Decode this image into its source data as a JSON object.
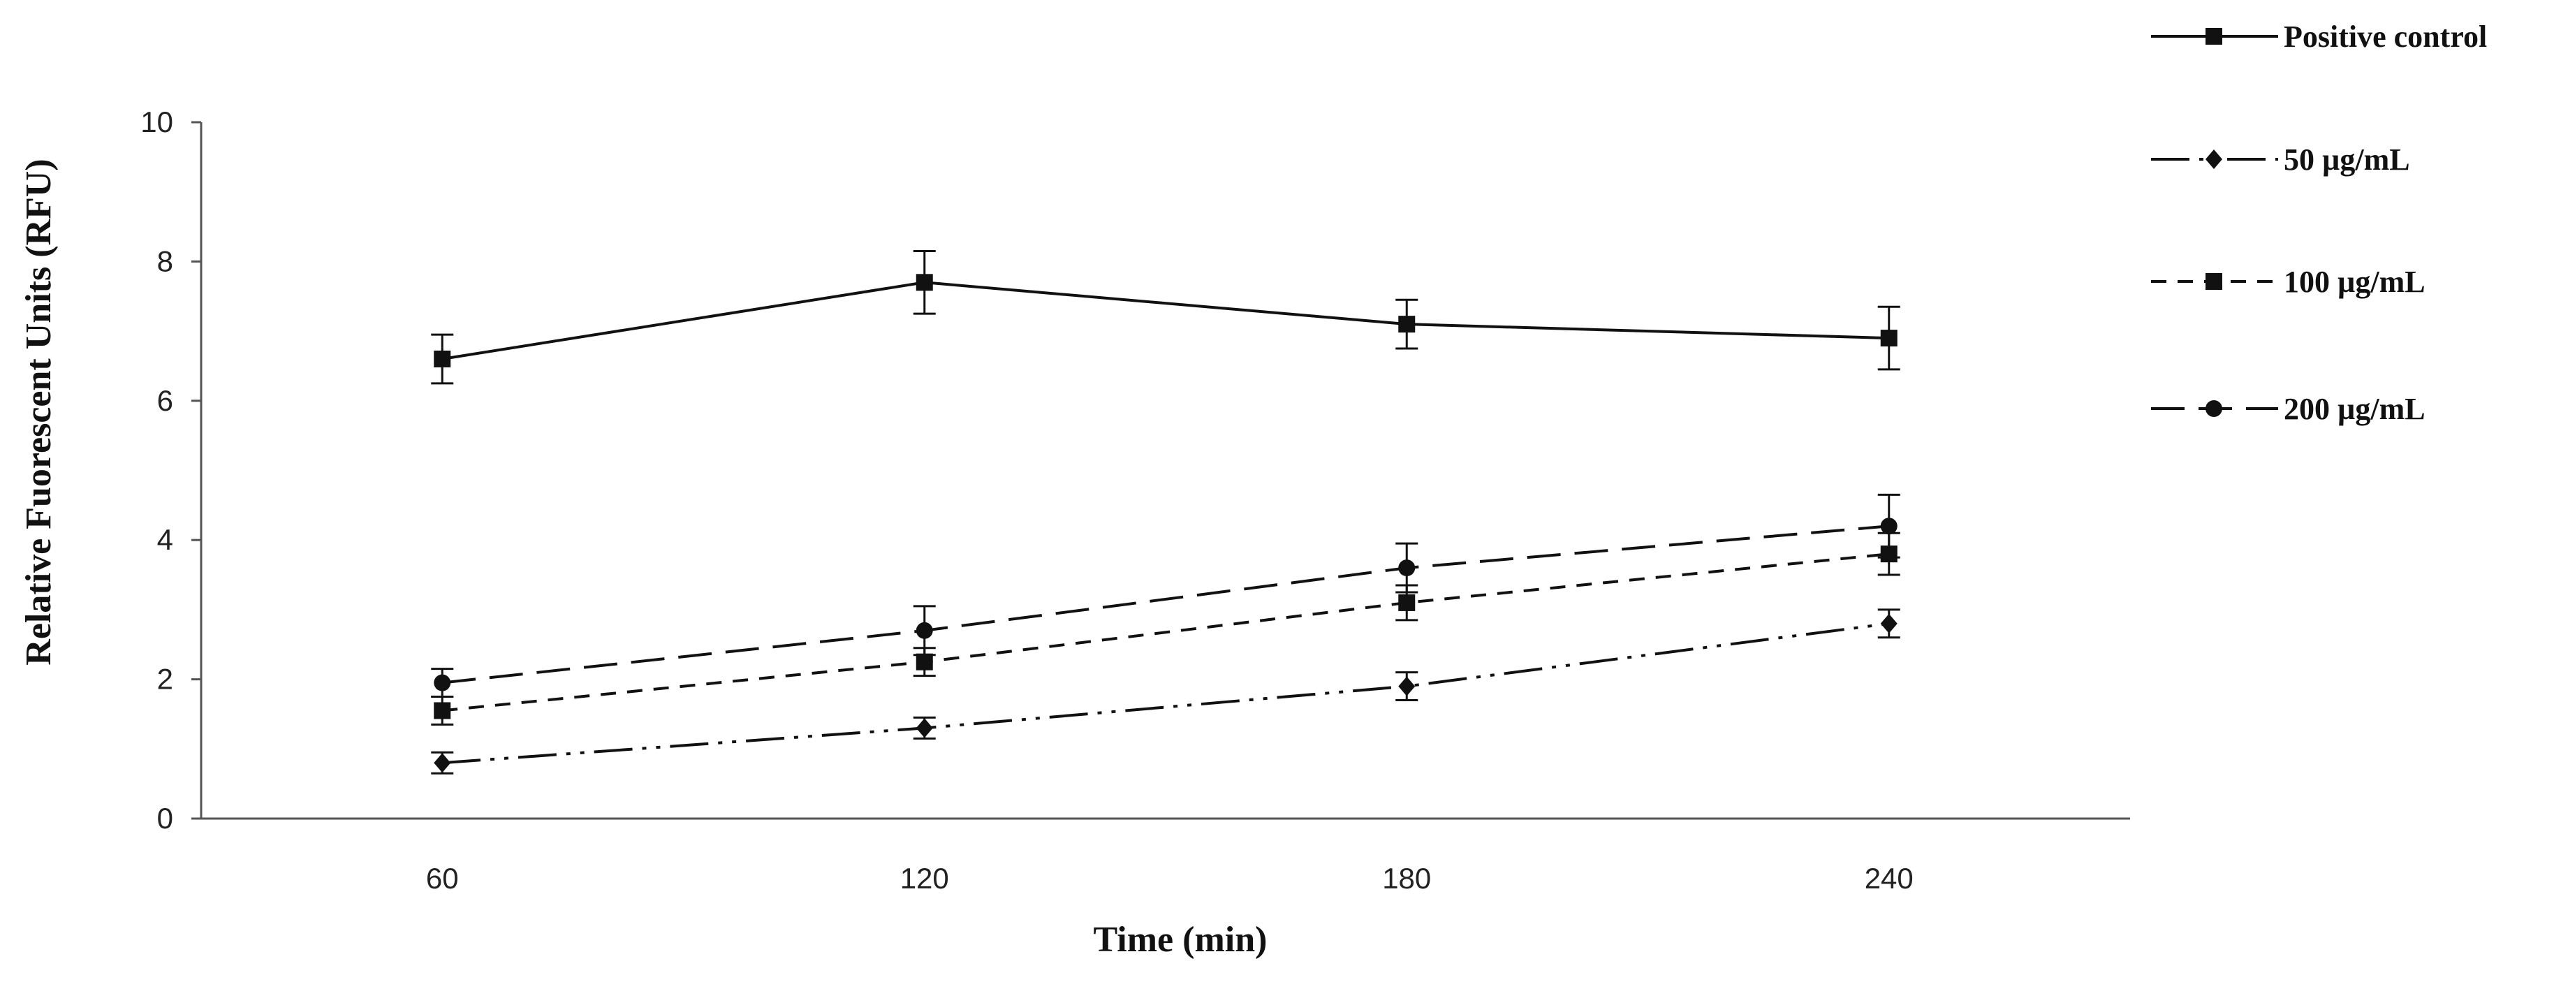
{
  "chart_data": {
    "type": "line",
    "xlabel": "Time (min)",
    "ylabel": "Relative Fuorescent Units (RFU)",
    "categories": [
      "60",
      "120",
      "180",
      "240"
    ],
    "ylim": [
      0,
      10
    ],
    "yticks": [
      "0",
      "2",
      "4",
      "6",
      "8",
      "10"
    ],
    "grid": false,
    "legend_position": "top-right, outside plot",
    "series": [
      {
        "name": "Positive control",
        "values": [
          6.6,
          7.7,
          7.1,
          6.9
        ],
        "errors": [
          0.35,
          0.45,
          0.35,
          0.45
        ],
        "line_style": "solid",
        "marker": "square"
      },
      {
        "name": " 50 µg/mL",
        "values": [
          0.8,
          1.3,
          1.9,
          2.8
        ],
        "errors": [
          0.15,
          0.15,
          0.2,
          0.2
        ],
        "line_style": "dash-dot-dot",
        "marker": "diamond"
      },
      {
        "name": "100 µg/mL",
        "values": [
          1.55,
          2.25,
          3.1,
          3.8
        ],
        "errors": [
          0.2,
          0.2,
          0.25,
          0.3
        ],
        "line_style": "short-dash",
        "marker": "square"
      },
      {
        "name": "200 µg/mL",
        "values": [
          1.95,
          2.7,
          3.6,
          4.2
        ],
        "errors": [
          0.2,
          0.35,
          0.35,
          0.45
        ],
        "line_style": "long-dash",
        "marker": "circle"
      }
    ],
    "colors": {
      "line": "#111111",
      "axis": "#555555"
    }
  }
}
